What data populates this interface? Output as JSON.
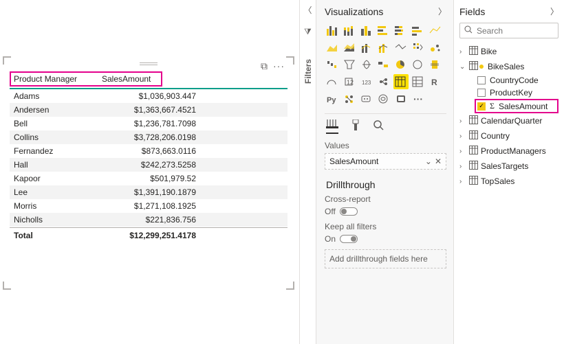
{
  "highlight_color": "#e3008c",
  "accent_teal": "#0d9e8a",
  "canvas": {
    "table": {
      "columns": [
        "Product Manager",
        "SalesAmount"
      ],
      "rows": [
        {
          "name": "Adams",
          "value": "$1,036,903.447"
        },
        {
          "name": "Andersen",
          "value": "$1,363,667.4521"
        },
        {
          "name": "Bell",
          "value": "$1,236,781.7098"
        },
        {
          "name": "Collins",
          "value": "$3,728,206.0198"
        },
        {
          "name": "Fernandez",
          "value": "$873,663.0116"
        },
        {
          "name": "Hall",
          "value": "$242,273.5258"
        },
        {
          "name": "Kapoor",
          "value": "$501,979.52"
        },
        {
          "name": "Lee",
          "value": "$1,391,190.1879"
        },
        {
          "name": "Morris",
          "value": "$1,271,108.1925"
        },
        {
          "name": "Nicholls",
          "value": "$221,836.756"
        }
      ],
      "total_label": "Total",
      "total_value": "$12,299,251.4178"
    }
  },
  "filters_label": "Filters",
  "viz": {
    "title": "Visualizations",
    "values_label": "Values",
    "field": "SalesAmount",
    "drill_title": "Drillthrough",
    "cross_report_label": "Cross-report",
    "cross_report_state": "Off",
    "keep_filters_label": "Keep all filters",
    "keep_filters_state": "On",
    "drop_hint": "Add drillthrough fields here"
  },
  "fields": {
    "title": "Fields",
    "search_placeholder": "Search",
    "tables": [
      {
        "name": "Bike",
        "expanded": false
      },
      {
        "name": "BikeSales",
        "expanded": true,
        "active": true,
        "fields": [
          {
            "name": "CountryCode",
            "checked": false
          },
          {
            "name": "ProductKey",
            "checked": false
          },
          {
            "name": "SalesAmount",
            "checked": true,
            "sigma": true,
            "highlight": true
          }
        ]
      },
      {
        "name": "CalendarQuarter",
        "expanded": false
      },
      {
        "name": "Country",
        "expanded": false
      },
      {
        "name": "ProductManagers",
        "expanded": false
      },
      {
        "name": "SalesTargets",
        "expanded": false
      },
      {
        "name": "TopSales",
        "expanded": false
      }
    ]
  }
}
